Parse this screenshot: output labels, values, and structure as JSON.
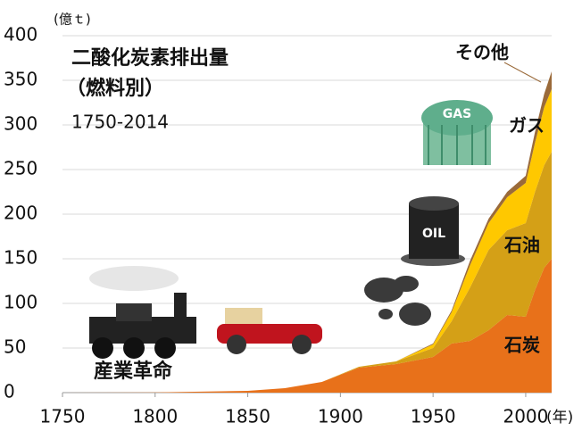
{
  "chart_data": {
    "type": "stacked-area",
    "title": "二酸化炭素排出量",
    "subtitle": "（燃料別）",
    "period": "1750-2014",
    "annotation": "産業革命",
    "y_label": "(億ｔ)",
    "x_label": "(年)",
    "x": [
      1750,
      1800,
      1850,
      1870,
      1890,
      1910,
      1930,
      1950,
      1960,
      1970,
      1980,
      1990,
      2000,
      2005,
      2010,
      2014
    ],
    "series": [
      {
        "name": "石炭",
        "color": "#e8711a",
        "values": [
          0,
          0.3,
          2,
          5,
          12,
          28,
          32,
          40,
          55,
          58,
          70,
          87,
          85,
          115,
          140,
          150
        ]
      },
      {
        "name": "石油",
        "color": "#d4a017",
        "values": [
          0,
          0,
          0,
          0,
          0,
          1,
          3,
          10,
          25,
          60,
          90,
          95,
          105,
          110,
          115,
          120
        ]
      },
      {
        "name": "ガス",
        "color": "#ffc800",
        "values": [
          0,
          0,
          0,
          0,
          0,
          0,
          0,
          4,
          10,
          25,
          30,
          37,
          45,
          55,
          65,
          70
        ]
      },
      {
        "name": "その他",
        "color": "#9a6a3a",
        "values": [
          0,
          0,
          0,
          0,
          0,
          0,
          0,
          1,
          2,
          5,
          5,
          6,
          8,
          12,
          15,
          20
        ]
      }
    ],
    "xlim": [
      1750,
      2014
    ],
    "xticks": [
      1750,
      1800,
      1850,
      1900,
      1950,
      2000
    ],
    "ylim": [
      0,
      400
    ],
    "yticks": [
      0,
      50,
      100,
      150,
      200,
      250,
      300,
      350,
      400
    ],
    "grid": true
  }
}
